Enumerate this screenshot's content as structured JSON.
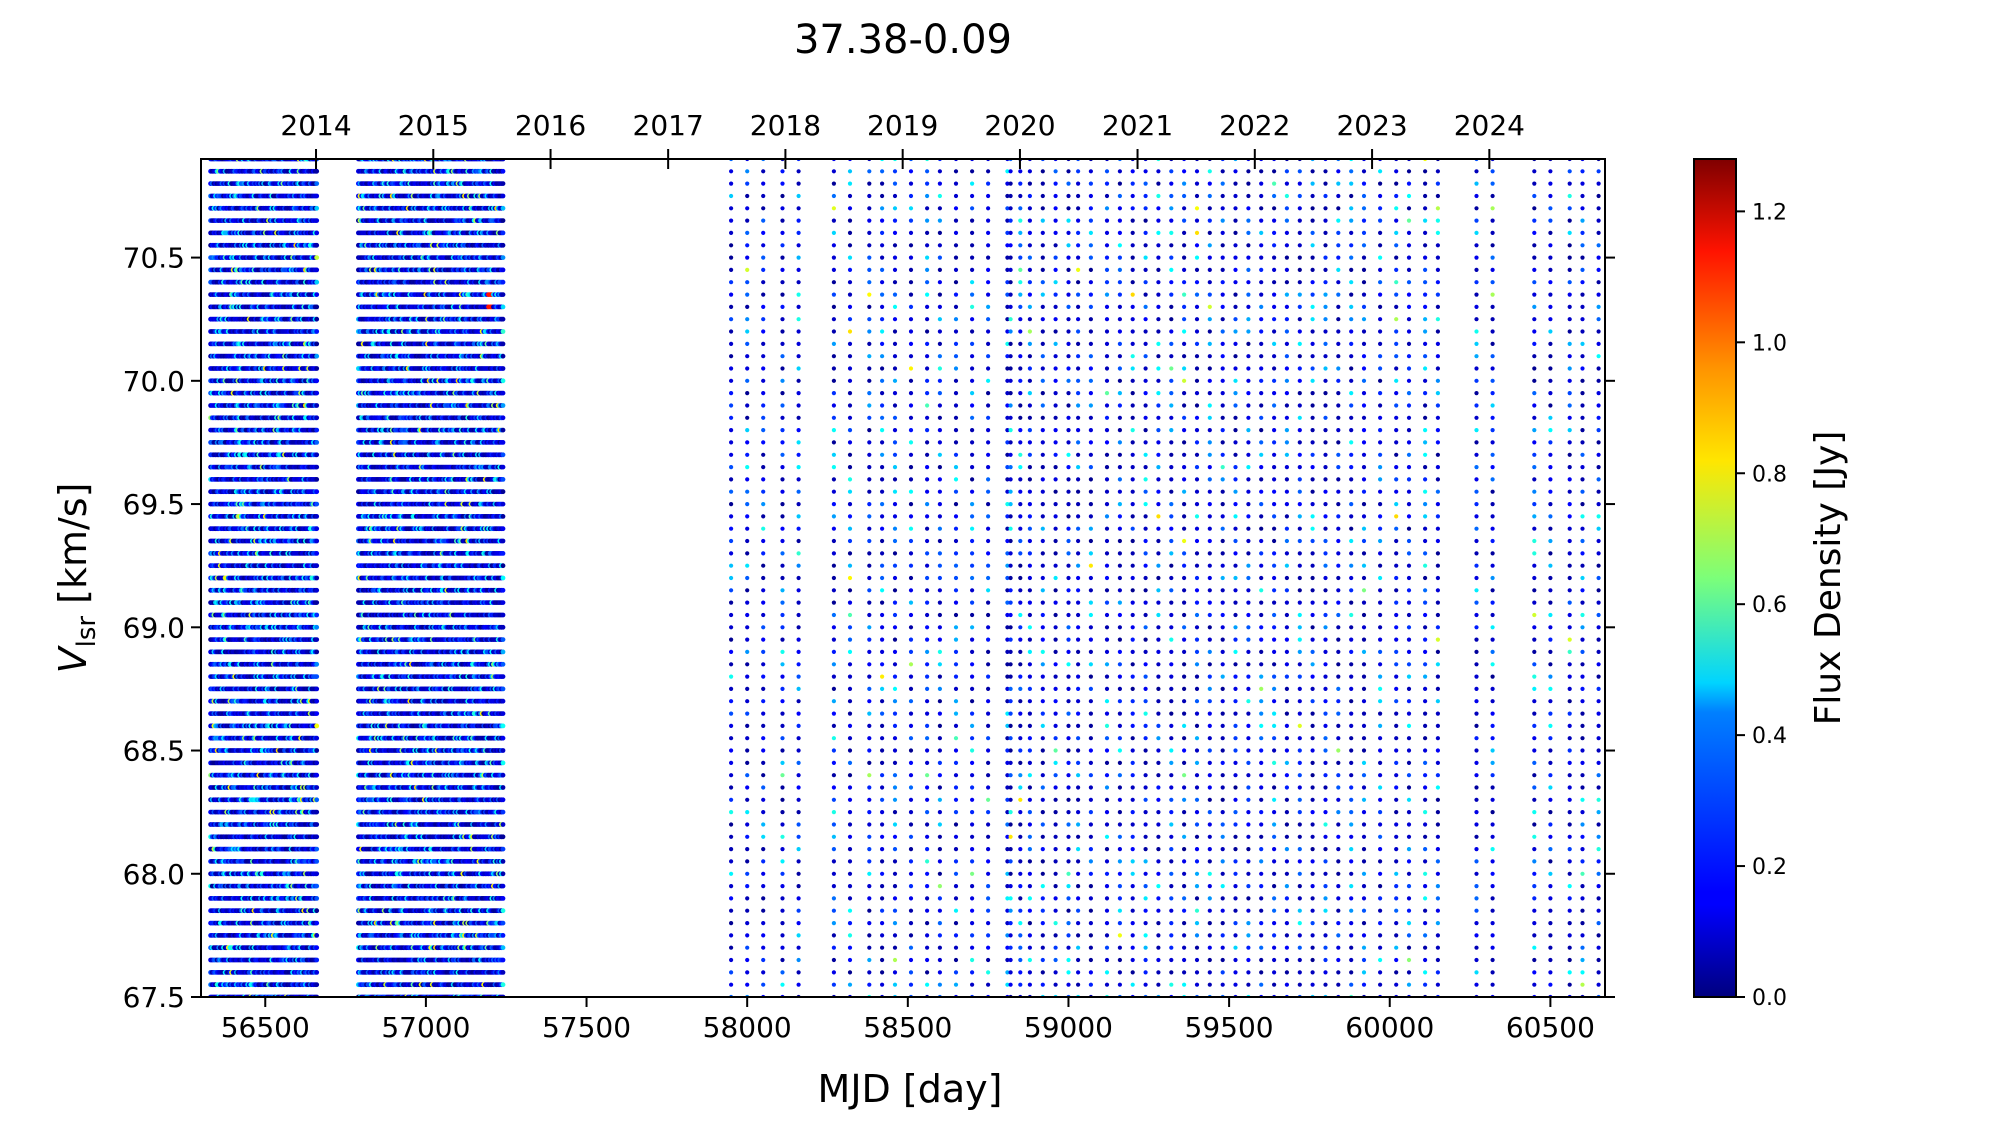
{
  "chart_data": {
    "type": "scatter",
    "title": "37.38-0.09",
    "xlabel": "MJD [day]",
    "ylabel_main": "V",
    "ylabel_sub": "lsr",
    "ylabel_unit": " [km/s]",
    "xlim": [
      56300,
      60670
    ],
    "ylim": [
      67.5,
      70.9
    ],
    "x_ticks": [
      56500,
      57000,
      57500,
      58000,
      58500,
      59000,
      59500,
      60000,
      60500
    ],
    "x_tick_labels": [
      "56500",
      "57000",
      "57500",
      "58000",
      "58500",
      "59000",
      "59500",
      "60000",
      "60500"
    ],
    "y_ticks": [
      67.5,
      68.0,
      68.5,
      69.0,
      69.5,
      70.0,
      70.5
    ],
    "y_tick_labels": [
      "67.5",
      "68.0",
      "68.5",
      "69.0",
      "69.5",
      "70.0",
      "70.5"
    ],
    "top_axis": {
      "ticks_mjd": [
        56658,
        57023,
        57388,
        57754,
        58119,
        58484,
        58849,
        59215,
        59580,
        59945,
        60310
      ],
      "labels": [
        "2014",
        "2015",
        "2016",
        "2017",
        "2018",
        "2019",
        "2020",
        "2021",
        "2022",
        "2023",
        "2024"
      ]
    },
    "colorbar": {
      "label": "Flux Density [Jy]",
      "range": [
        0.0,
        1.28
      ],
      "ticks": [
        0.0,
        0.2,
        0.4,
        0.6,
        0.8,
        1.0,
        1.2
      ],
      "tick_labels": [
        "0.0",
        "0.2",
        "0.4",
        "0.6",
        "0.8",
        "1.0",
        "1.2"
      ],
      "colormap": "jet"
    },
    "observation_epochs": {
      "dense_2013_2014": {
        "from": 56330,
        "to": 56660,
        "cadence_days": 5
      },
      "dense_2014_2015": {
        "from": 56790,
        "to": 57240,
        "cadence_days": 5
      },
      "sparse": [
        57950,
        58000,
        58050,
        58110,
        58160,
        58270,
        58320,
        58380,
        58420,
        58460,
        58510,
        58560,
        58600,
        58650,
        58700,
        58750,
        58810,
        58820,
        58850,
        58880,
        58920,
        58960,
        59000,
        59030,
        59070,
        59120,
        59160,
        59200,
        59240,
        59280,
        59320,
        59360,
        59400,
        59440,
        59480,
        59520,
        59560,
        59600,
        59640,
        59680,
        59720,
        59760,
        59800,
        59840,
        59880,
        59920,
        59970,
        60020,
        60060,
        60110,
        60150,
        60270,
        60320,
        60450,
        60500,
        60560,
        60600,
        60650
      ],
      "velocity_channel_kms": 0.05
    },
    "flux_description": "Flux mostly 0.0-0.3 Jy across all epochs and velocities, occasional 0.4-0.8 Jy points, rare peak near 1.1 Jy at MJD ~57200, Vlsr ~70.3"
  }
}
